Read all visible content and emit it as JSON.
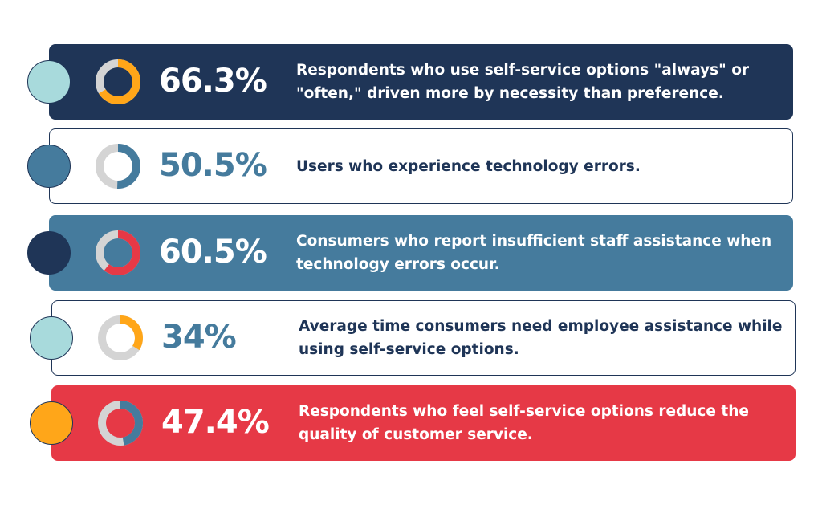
{
  "chart_data": {
    "type": "donut-list",
    "items": [
      {
        "label": "66.3%",
        "value": 66.3,
        "description": "Respondents who use self-service options \"always\" or \"often,\" driven more by necessity than preference.",
        "card_bg": "#1f3557",
        "card_border": "#1f3557",
        "text_color": "#ffffff",
        "pct_color": "#ffffff",
        "dot_color": "#a8dadc",
        "ring_fill": "#ffa619",
        "ring_rest": "#d4d4d4"
      },
      {
        "label": "50.5%",
        "value": 50.5,
        "description": "Users who experience technology errors.",
        "card_bg": "#ffffff",
        "card_border": "#1f3557",
        "text_color": "#1f3557",
        "pct_color": "#457b9d",
        "dot_color": "#457b9d",
        "ring_fill": "#457b9d",
        "ring_rest": "#d4d4d4"
      },
      {
        "label": "60.5%",
        "value": 60.5,
        "description": "Consumers who report insufficient staff assistance when technology errors occur.",
        "card_bg": "#457b9d",
        "card_border": "#457b9d",
        "text_color": "#ffffff",
        "pct_color": "#ffffff",
        "dot_color": "#1f3557",
        "ring_fill": "#e63946",
        "ring_rest": "#d4d4d4"
      },
      {
        "label": "34%",
        "value": 34,
        "description": "Average time consumers need employee assistance while using self-service options.",
        "card_bg": "#ffffff",
        "card_border": "#1f3557",
        "text_color": "#1f3557",
        "pct_color": "#457b9d",
        "dot_color": "#a8dadc",
        "ring_fill": "#ffa619",
        "ring_rest": "#d4d4d4"
      },
      {
        "label": "47.4%",
        "value": 47.4,
        "description": "Respondents who feel self-service options reduce the quality of customer service.",
        "card_bg": "#e63946",
        "card_border": "#e63946",
        "text_color": "#ffffff",
        "pct_color": "#ffffff",
        "dot_color": "#ffa619",
        "ring_fill": "#457b9d",
        "ring_rest": "#d4d4d4"
      }
    ]
  }
}
